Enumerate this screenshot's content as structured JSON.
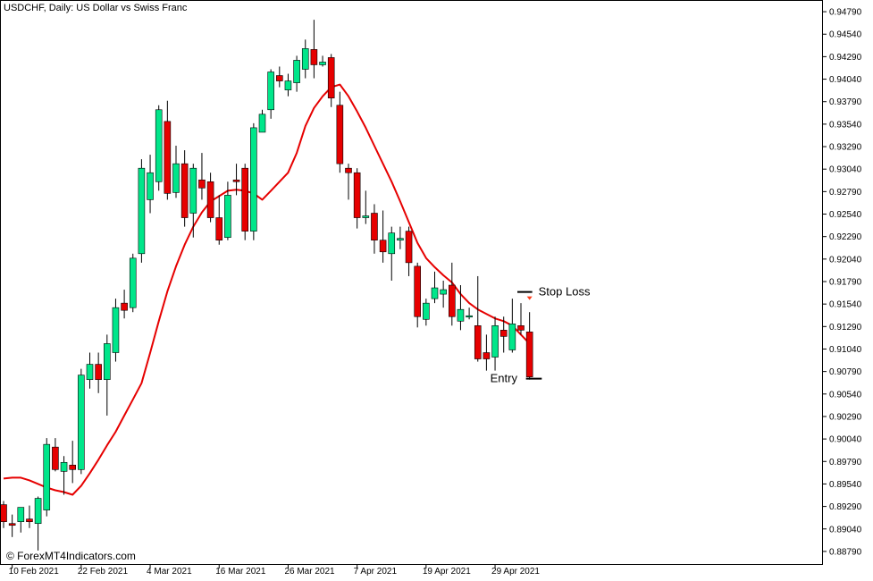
{
  "window": {
    "title": "USDCHF, Daily:  US Dollar vs Swiss Franc",
    "watermark": "© ForexMT4Indicators.com"
  },
  "colors": {
    "bull": "#00e68a",
    "bear": "#e60000",
    "ma": "#e60000",
    "wick": "#000000",
    "background": "#ffffff",
    "arrow": "#ff3b1a"
  },
  "chart_data": {
    "type": "candlestick",
    "title": "USDCHF, Daily:  US Dollar vs Swiss Franc",
    "ylim": [
      0.8865,
      0.9492
    ],
    "y_ticks": [
      "0.94790",
      "0.94540",
      "0.94290",
      "0.94040",
      "0.93790",
      "0.93540",
      "0.93290",
      "0.93040",
      "0.92790",
      "0.92540",
      "0.92290",
      "0.92040",
      "0.91790",
      "0.91540",
      "0.91290",
      "0.91040",
      "0.90790",
      "0.90540",
      "0.90290",
      "0.90040",
      "0.89790",
      "0.89540",
      "0.89290",
      "0.89040",
      "0.88790"
    ],
    "x_ticks": [
      {
        "label": "10 Feb 2021",
        "index": 1
      },
      {
        "label": "22 Feb 2021",
        "index": 9
      },
      {
        "label": "4 Mar 2021",
        "index": 17
      },
      {
        "label": "16 Mar 2021",
        "index": 25
      },
      {
        "label": "26 Mar 2021",
        "index": 33
      },
      {
        "label": "7 Apr 2021",
        "index": 41
      },
      {
        "label": "19 Apr 2021",
        "index": 49
      },
      {
        "label": "29 Apr 2021",
        "index": 57
      }
    ],
    "candles": [
      {
        "o": 0.8931,
        "h": 0.8935,
        "l": 0.8905,
        "c": 0.8912
      },
      {
        "o": 0.891,
        "h": 0.892,
        "l": 0.8895,
        "c": 0.8908
      },
      {
        "o": 0.8912,
        "h": 0.8925,
        "l": 0.89,
        "c": 0.8928
      },
      {
        "o": 0.8915,
        "h": 0.893,
        "l": 0.8905,
        "c": 0.8912
      },
      {
        "o": 0.891,
        "h": 0.894,
        "l": 0.888,
        "c": 0.8938
      },
      {
        "o": 0.8925,
        "h": 0.9005,
        "l": 0.8918,
        "c": 0.8998
      },
      {
        "o": 0.8995,
        "h": 0.9005,
        "l": 0.8968,
        "c": 0.897
      },
      {
        "o": 0.8968,
        "h": 0.8985,
        "l": 0.8942,
        "c": 0.8978
      },
      {
        "o": 0.8975,
        "h": 0.9002,
        "l": 0.8955,
        "c": 0.897
      },
      {
        "o": 0.897,
        "h": 0.9082,
        "l": 0.8965,
        "c": 0.9075
      },
      {
        "o": 0.907,
        "h": 0.91,
        "l": 0.906,
        "c": 0.9087
      },
      {
        "o": 0.9087,
        "h": 0.91,
        "l": 0.9055,
        "c": 0.907
      },
      {
        "o": 0.907,
        "h": 0.912,
        "l": 0.903,
        "c": 0.911
      },
      {
        "o": 0.91,
        "h": 0.916,
        "l": 0.909,
        "c": 0.915
      },
      {
        "o": 0.9155,
        "h": 0.917,
        "l": 0.9138,
        "c": 0.9147
      },
      {
        "o": 0.915,
        "h": 0.921,
        "l": 0.9145,
        "c": 0.9205
      },
      {
        "o": 0.921,
        "h": 0.9315,
        "l": 0.92,
        "c": 0.9305
      },
      {
        "o": 0.927,
        "h": 0.932,
        "l": 0.9255,
        "c": 0.93
      },
      {
        "o": 0.929,
        "h": 0.9375,
        "l": 0.928,
        "c": 0.937
      },
      {
        "o": 0.9357,
        "h": 0.938,
        "l": 0.927,
        "c": 0.9277
      },
      {
        "o": 0.9278,
        "h": 0.933,
        "l": 0.9272,
        "c": 0.931
      },
      {
        "o": 0.931,
        "h": 0.9325,
        "l": 0.924,
        "c": 0.925
      },
      {
        "o": 0.9255,
        "h": 0.931,
        "l": 0.9228,
        "c": 0.9305
      },
      {
        "o": 0.9292,
        "h": 0.9322,
        "l": 0.927,
        "c": 0.9283
      },
      {
        "o": 0.929,
        "h": 0.93,
        "l": 0.9245,
        "c": 0.925
      },
      {
        "o": 0.925,
        "h": 0.9275,
        "l": 0.922,
        "c": 0.9225
      },
      {
        "o": 0.9228,
        "h": 0.929,
        "l": 0.9225,
        "c": 0.9275
      },
      {
        "o": 0.9292,
        "h": 0.931,
        "l": 0.9275,
        "c": 0.929
      },
      {
        "o": 0.9305,
        "h": 0.931,
        "l": 0.9225,
        "c": 0.9235
      },
      {
        "o": 0.9235,
        "h": 0.9355,
        "l": 0.9225,
        "c": 0.935
      },
      {
        "o": 0.9345,
        "h": 0.937,
        "l": 0.9345,
        "c": 0.9365
      },
      {
        "o": 0.937,
        "h": 0.9415,
        "l": 0.936,
        "c": 0.9412
      },
      {
        "o": 0.9408,
        "h": 0.9418,
        "l": 0.9395,
        "c": 0.9402
      },
      {
        "o": 0.9392,
        "h": 0.941,
        "l": 0.9385,
        "c": 0.9402
      },
      {
        "o": 0.94,
        "h": 0.943,
        "l": 0.939,
        "c": 0.9425
      },
      {
        "o": 0.9415,
        "h": 0.9448,
        "l": 0.9405,
        "c": 0.9438
      },
      {
        "o": 0.9437,
        "h": 0.947,
        "l": 0.9405,
        "c": 0.942
      },
      {
        "o": 0.942,
        "h": 0.943,
        "l": 0.9418,
        "c": 0.9423
      },
      {
        "o": 0.9428,
        "h": 0.9432,
        "l": 0.9373,
        "c": 0.9383
      },
      {
        "o": 0.9375,
        "h": 0.939,
        "l": 0.93,
        "c": 0.931
      },
      {
        "o": 0.9305,
        "h": 0.931,
        "l": 0.927,
        "c": 0.93
      },
      {
        "o": 0.93,
        "h": 0.9305,
        "l": 0.9238,
        "c": 0.925
      },
      {
        "o": 0.925,
        "h": 0.928,
        "l": 0.9243,
        "c": 0.9252
      },
      {
        "o": 0.9255,
        "h": 0.9265,
        "l": 0.921,
        "c": 0.9225
      },
      {
        "o": 0.9225,
        "h": 0.9258,
        "l": 0.92,
        "c": 0.9212
      },
      {
        "o": 0.921,
        "h": 0.924,
        "l": 0.918,
        "c": 0.9233
      },
      {
        "o": 0.9225,
        "h": 0.924,
        "l": 0.9215,
        "c": 0.9227
      },
      {
        "o": 0.9235,
        "h": 0.924,
        "l": 0.9185,
        "c": 0.92
      },
      {
        "o": 0.9196,
        "h": 0.92,
        "l": 0.9128,
        "c": 0.914
      },
      {
        "o": 0.9137,
        "h": 0.916,
        "l": 0.913,
        "c": 0.9155
      },
      {
        "o": 0.916,
        "h": 0.919,
        "l": 0.9155,
        "c": 0.9172
      },
      {
        "o": 0.9165,
        "h": 0.918,
        "l": 0.915,
        "c": 0.917
      },
      {
        "o": 0.9175,
        "h": 0.92,
        "l": 0.913,
        "c": 0.914
      },
      {
        "o": 0.9135,
        "h": 0.9175,
        "l": 0.9125,
        "c": 0.9148
      },
      {
        "o": 0.914,
        "h": 0.915,
        "l": 0.9137,
        "c": 0.9141
      },
      {
        "o": 0.913,
        "h": 0.9185,
        "l": 0.909,
        "c": 0.9093
      },
      {
        "o": 0.91,
        "h": 0.912,
        "l": 0.908,
        "c": 0.9093
      },
      {
        "o": 0.9095,
        "h": 0.914,
        "l": 0.908,
        "c": 0.913
      },
      {
        "o": 0.9125,
        "h": 0.914,
        "l": 0.91,
        "c": 0.9118
      },
      {
        "o": 0.9103,
        "h": 0.916,
        "l": 0.91,
        "c": 0.9132
      },
      {
        "o": 0.913,
        "h": 0.9155,
        "l": 0.912,
        "c": 0.9125
      },
      {
        "o": 0.9123,
        "h": 0.9145,
        "l": 0.907,
        "c": 0.9073
      }
    ],
    "ma": [
      0.896,
      0.8961,
      0.8961,
      0.8958,
      0.8954,
      0.895,
      0.8947,
      0.8945,
      0.8942,
      0.8952,
      0.8966,
      0.8981,
      0.8997,
      0.9012,
      0.903,
      0.9048,
      0.9066,
      0.91,
      0.9135,
      0.9168,
      0.9196,
      0.922,
      0.924,
      0.9256,
      0.9268,
      0.9274,
      0.928,
      0.9281,
      0.928,
      0.9277,
      0.927,
      0.928,
      0.929,
      0.93,
      0.9322,
      0.9352,
      0.9372,
      0.9385,
      0.9395,
      0.9398,
      0.9385,
      0.9368,
      0.935,
      0.933,
      0.931,
      0.929,
      0.9268,
      0.9245,
      0.9222,
      0.9205,
      0.9195,
      0.9186,
      0.9178,
      0.9165,
      0.9155,
      0.9148,
      0.9143,
      0.9138,
      0.9135,
      0.913,
      0.912,
      0.911
    ],
    "annotations": [
      {
        "text": "Stop Loss",
        "price": 0.91675,
        "line_from": 60,
        "line_to": 61
      },
      {
        "text": "Entry",
        "price": 0.9071,
        "line_from": 61,
        "line_to": 62
      }
    ],
    "grid": false,
    "legend": "none"
  }
}
